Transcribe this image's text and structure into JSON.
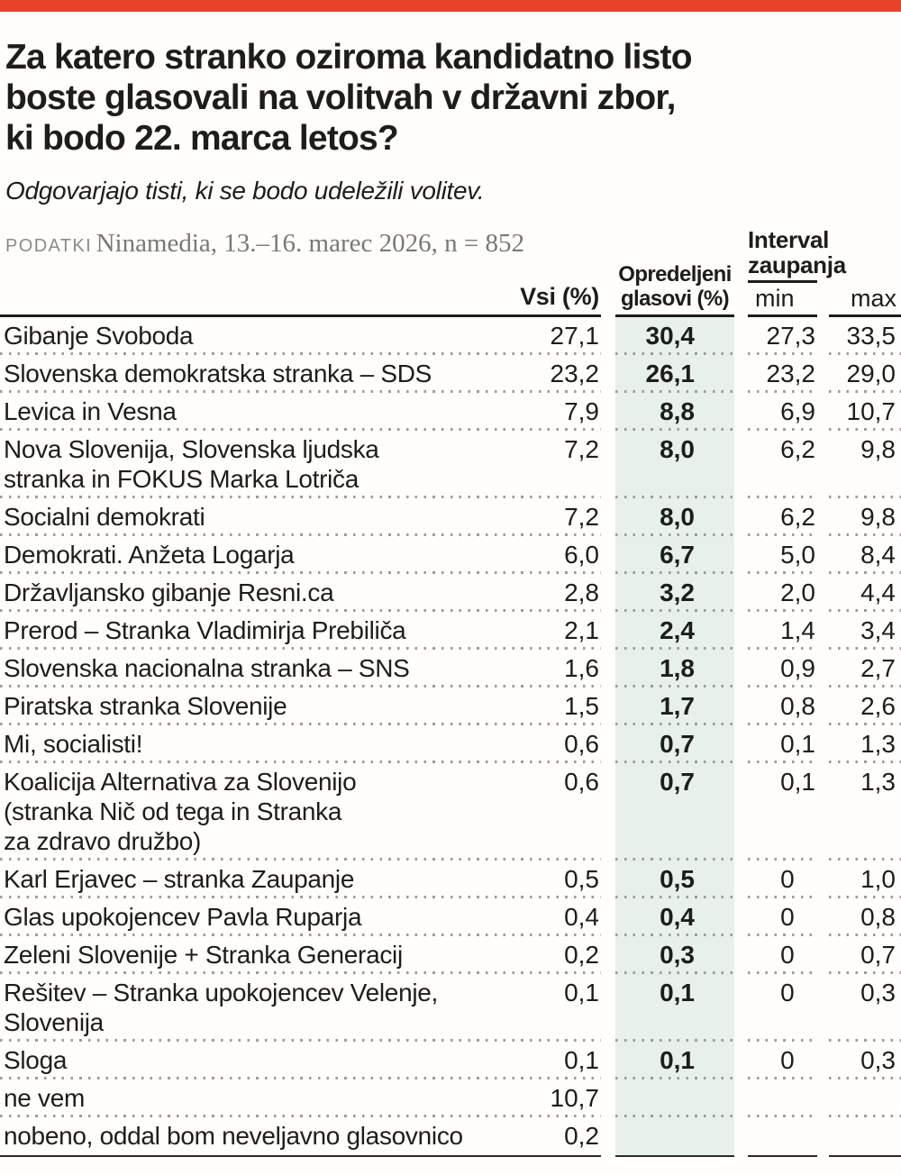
{
  "colors": {
    "brand_red": "#e9422a",
    "highlight_green": "#e8f0ea"
  },
  "header": {
    "title": "Za katero stranko oziroma kandidatno listo\nboste glasovali na volitvah v državni zbor,\nki bodo 22. marca letos?",
    "subtitle": "Odgovarjajo tisti, ki se bodo udeležili volitev.",
    "source_label": "PODATKI",
    "source_text": "Ninamedia, 13.–16. marec 2026, n = 852"
  },
  "table": {
    "head_vsi": "Vsi (%)",
    "head_opredeljeni": "Opredeljeni\nglasovi (%)",
    "head_interval": "Interval\nzaupanja",
    "head_min": "min",
    "head_max": "max"
  },
  "chart_data": {
    "type": "table",
    "title": "Za katero stranko oziroma kandidatno listo boste glasovali na volitvah v državni zbor, ki bodo 22. marca letos?",
    "subtitle": "Odgovarjajo tisti, ki se bodo udeležili volitev.",
    "source": "PODATKI Ninamedia, 13.–16. marec 2026, n = 852",
    "columns": [
      "Vsi (%)",
      "Opredeljeni glasovi (%)",
      "Interval zaupanja min",
      "Interval zaupanja max"
    ],
    "rows": [
      {
        "label": "Gibanje Svoboda",
        "vsi": "27,1",
        "opredeljeni": "30,4",
        "min": "27,3",
        "max": "33,5"
      },
      {
        "label": "Slovenska demokratska stranka – SDS",
        "vsi": "23,2",
        "opredeljeni": "26,1",
        "min": "23,2",
        "max": "29,0"
      },
      {
        "label": "Levica in Vesna",
        "vsi": "7,9",
        "opredeljeni": "8,8",
        "min": "6,9",
        "max": "10,7"
      },
      {
        "label": "Nova Slovenija, Slovenska ljudska\nstranka in FOKUS Marka Lotriča",
        "vsi": "7,2",
        "opredeljeni": "8,0",
        "min": "6,2",
        "max": "9,8"
      },
      {
        "label": "Socialni demokrati",
        "vsi": "7,2",
        "opredeljeni": "8,0",
        "min": "6,2",
        "max": "9,8"
      },
      {
        "label": "Demokrati. Anžeta Logarja",
        "vsi": "6,0",
        "opredeljeni": "6,7",
        "min": "5,0",
        "max": "8,4"
      },
      {
        "label": "Državljansko gibanje Resni.ca",
        "vsi": "2,8",
        "opredeljeni": "3,2",
        "min": "2,0",
        "max": "4,4"
      },
      {
        "label": "Prerod – Stranka Vladimirja Prebiliča",
        "vsi": "2,1",
        "opredeljeni": "2,4",
        "min": "1,4",
        "max": "3,4"
      },
      {
        "label": "Slovenska nacionalna stranka – SNS",
        "vsi": "1,6",
        "opredeljeni": "1,8",
        "min": "0,9",
        "max": "2,7"
      },
      {
        "label": "Piratska stranka Slovenije",
        "vsi": "1,5",
        "opredeljeni": "1,7",
        "min": "0,8",
        "max": "2,6"
      },
      {
        "label": "Mi, socialisti!",
        "vsi": "0,6",
        "opredeljeni": "0,7",
        "min": "0,1",
        "max": "1,3"
      },
      {
        "label": "Koalicija Alternativa za Slovenijo\n(stranka Nič od tega in Stranka\nza zdravo družbo)",
        "vsi": "0,6",
        "opredeljeni": "0,7",
        "min": "0,1",
        "max": "1,3"
      },
      {
        "label": "Karl Erjavec – stranka Zaupanje",
        "vsi": "0,5",
        "opredeljeni": "0,5",
        "min": "0",
        "max": "1,0"
      },
      {
        "label": "Glas upokojencev Pavla Ruparja",
        "vsi": "0,4",
        "opredeljeni": "0,4",
        "min": "0",
        "max": "0,8"
      },
      {
        "label": "Zeleni Slovenije + Stranka Generacij",
        "vsi": "0,2",
        "opredeljeni": "0,3",
        "min": "0",
        "max": "0,7"
      },
      {
        "label": "Rešitev – Stranka upokojencev Velenje, Slovenija",
        "vsi": "0,1",
        "opredeljeni": "0,1",
        "min": "0",
        "max": "0,3"
      },
      {
        "label": "Sloga",
        "vsi": "0,1",
        "opredeljeni": "0,1",
        "min": "0",
        "max": "0,3"
      },
      {
        "label": "ne vem",
        "vsi": "10,7",
        "opredeljeni": "",
        "min": "",
        "max": ""
      },
      {
        "label": "nobeno, oddal bom neveljavno glasovnico",
        "vsi": "0,2",
        "opredeljeni": "",
        "min": "",
        "max": ""
      }
    ]
  }
}
